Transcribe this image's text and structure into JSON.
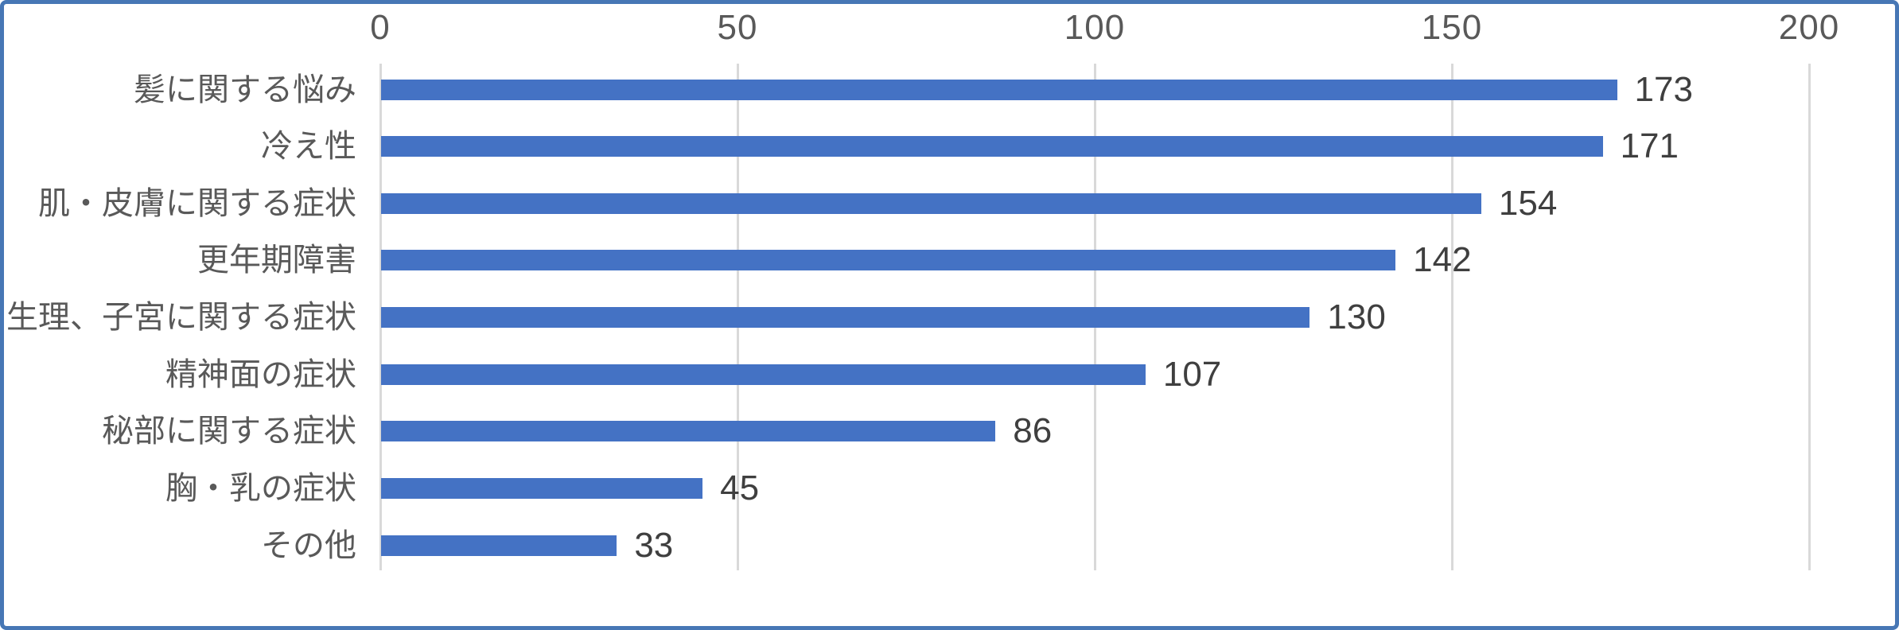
{
  "chart_data": {
    "type": "bar",
    "orientation": "horizontal",
    "title": "",
    "xlabel": "",
    "ylabel": "",
    "categories": [
      "髪に関する悩み",
      "冷え性",
      "肌・皮膚に関する症状",
      "更年期障害",
      "生理、子宮に関する症状",
      "精神面の症状",
      "秘部に関する症状",
      "胸・乳の症状",
      "その他"
    ],
    "values": [
      173,
      171,
      154,
      142,
      130,
      107,
      86,
      45,
      33
    ],
    "x_ticks": [
      0,
      50,
      100,
      150,
      200
    ],
    "xlim": [
      0,
      200
    ],
    "axis_position": "top",
    "grid": true,
    "legend": false,
    "data_labels": true,
    "colors": {
      "bar": "#4472C4",
      "frame_border": "#4777B5",
      "gridline": "#D9D9D9",
      "tick_label": "#595959",
      "category_label": "#595959",
      "value_label": "#3F3F3F",
      "background": "#FFFFFF"
    }
  }
}
